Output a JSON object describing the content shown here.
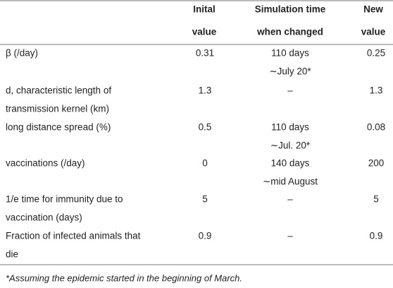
{
  "table": {
    "header": [
      [
        "Inital",
        "value"
      ],
      [
        "Simulation time",
        "when changed"
      ],
      [
        "New",
        "value"
      ]
    ],
    "rows": [
      {
        "parameter": [
          "β (/day)"
        ],
        "initial": "0.31",
        "changed": [
          "110 days",
          "∼July 20*"
        ],
        "new": "0.25"
      },
      {
        "parameter": [
          "d, characteristic length of",
          "transmission kernel (km)"
        ],
        "initial": "1.3",
        "changed": [
          "–"
        ],
        "new": "1.3"
      },
      {
        "parameter": [
          "long distance spread (%)"
        ],
        "initial": "0.5",
        "changed": [
          "110 days",
          "∼Jul. 20*"
        ],
        "new": "0.08"
      },
      {
        "parameter": [
          "vaccinations (/day)"
        ],
        "initial": "0",
        "changed": [
          "140 days",
          "∼mid August"
        ],
        "new": "200"
      },
      {
        "parameter": [
          "1/e time for immunity due to",
          "vaccination (days)"
        ],
        "initial": "5",
        "changed": [
          "–"
        ],
        "new": "5"
      },
      {
        "parameter": [
          "Fraction of infected animals that",
          "die"
        ],
        "initial": "0.9",
        "changed": [
          "–"
        ],
        "new": "0.9"
      }
    ]
  },
  "footnote": "*Assuming the epidemic started in the beginning of March."
}
